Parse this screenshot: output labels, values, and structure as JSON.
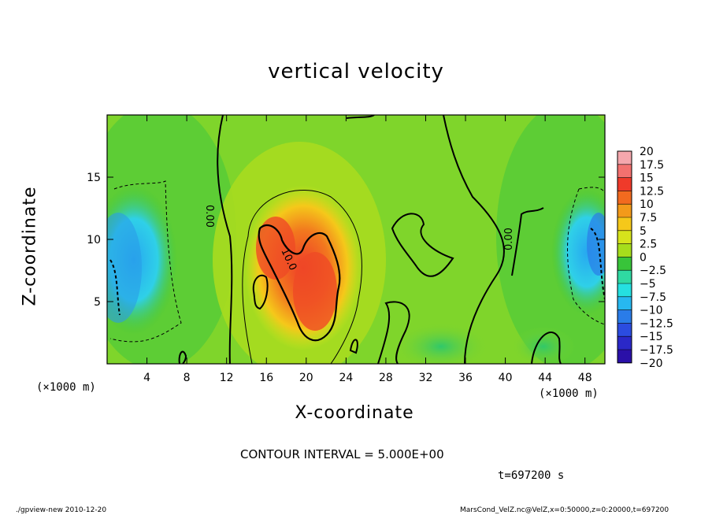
{
  "title": "vertical velocity",
  "xlabel": "X-coordinate",
  "ylabel": "Z-coordinate",
  "x_unit_left": "(×1000 m)",
  "x_unit_right": "(×1000 m)",
  "contour_interval": "CONTOUR INTERVAL = 5.000E+00",
  "time": "t=697200 s",
  "footer_left": "./gpview-new  2010-12-20",
  "footer_right": "MarsCond_VelZ.nc@VelZ,x=0:50000,z=0:20000,t=697200",
  "chart_data": {
    "type": "heatmap",
    "title": "vertical velocity",
    "xlabel": "X-coordinate",
    "ylabel": "Z-coordinate",
    "x_unit": "(×1000 m)",
    "xlim": [
      0,
      50
    ],
    "ylim": [
      0,
      20
    ],
    "x_ticks": [
      4,
      8,
      12,
      16,
      20,
      24,
      28,
      32,
      36,
      40,
      44,
      48
    ],
    "y_ticks": [
      5,
      10,
      15
    ],
    "colorbar": {
      "labels": [
        "20",
        "17.5",
        "15",
        "12.5",
        "10",
        "7.5",
        "5",
        "2.5",
        "0",
        "−2.5",
        "−5",
        "−7.5",
        "−10",
        "−12.5",
        "−15",
        "−17.5",
        "−20"
      ],
      "colors": [
        "#f5a7ad",
        "#f3716f",
        "#ef3a2a",
        "#f26a1f",
        "#f39a1a",
        "#f5c81a",
        "#d6e31c",
        "#a6dd1c",
        "#38c43a",
        "#2fd9a2",
        "#25e0e0",
        "#27b8f0",
        "#2a7ce8",
        "#2b4ce0",
        "#2a28c8",
        "#2a10a8",
        "#6a18b0"
      ]
    },
    "contour_labels": [
      "0.00",
      "10.0",
      "0.00"
    ],
    "contour_interval": 5.0,
    "time_s": 697200
  }
}
